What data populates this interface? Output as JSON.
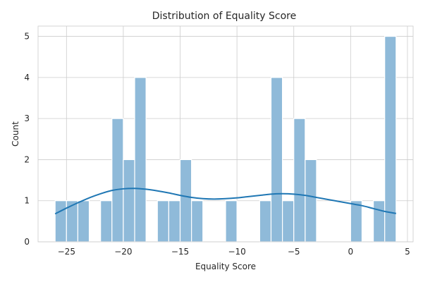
{
  "chart_data": {
    "type": "bar",
    "title": "Distribution of Equality Score",
    "xlabel": "Equality Score",
    "ylabel": "Count",
    "xlim": [
      -27.5,
      5.5
    ],
    "ylim": [
      0,
      5.25
    ],
    "x_ticks": [
      -25,
      -20,
      -15,
      -10,
      -5,
      0,
      5
    ],
    "x_tick_labels": [
      "−25",
      "−20",
      "−15",
      "−10",
      "−5",
      "0",
      "5"
    ],
    "y_ticks": [
      0,
      1,
      2,
      3,
      4,
      5
    ],
    "y_tick_labels": [
      "0",
      "1",
      "2",
      "3",
      "4",
      "5"
    ],
    "grid": true,
    "bar_color": "#8fbad9",
    "bar_edge_color": "#ffffff",
    "kde_color": "#1f77b4",
    "bins": [
      {
        "x0": -26.0,
        "x1": -25.0,
        "count": 1
      },
      {
        "x0": -25.0,
        "x1": -24.0,
        "count": 1
      },
      {
        "x0": -24.0,
        "x1": -23.0,
        "count": 1
      },
      {
        "x0": -22.0,
        "x1": -21.0,
        "count": 1
      },
      {
        "x0": -21.0,
        "x1": -20.0,
        "count": 3
      },
      {
        "x0": -20.0,
        "x1": -19.0,
        "count": 2
      },
      {
        "x0": -19.0,
        "x1": -18.0,
        "count": 4
      },
      {
        "x0": -17.0,
        "x1": -16.0,
        "count": 1
      },
      {
        "x0": -16.0,
        "x1": -15.0,
        "count": 1
      },
      {
        "x0": -15.0,
        "x1": -14.0,
        "count": 2
      },
      {
        "x0": -14.0,
        "x1": -13.0,
        "count": 1
      },
      {
        "x0": -11.0,
        "x1": -10.0,
        "count": 1
      },
      {
        "x0": -8.0,
        "x1": -7.0,
        "count": 1
      },
      {
        "x0": -7.0,
        "x1": -6.0,
        "count": 4
      },
      {
        "x0": -6.0,
        "x1": -5.0,
        "count": 1
      },
      {
        "x0": -5.0,
        "x1": -4.0,
        "count": 3
      },
      {
        "x0": -4.0,
        "x1": -3.0,
        "count": 2
      },
      {
        "x0": 0.0,
        "x1": 1.0,
        "count": 1
      },
      {
        "x0": 2.0,
        "x1": 3.0,
        "count": 1
      },
      {
        "x0": 3.0,
        "x1": 4.0,
        "count": 5
      }
    ],
    "kde": {
      "x": [
        -26,
        -25,
        -24,
        -23,
        -22,
        -21,
        -20,
        -19,
        -18,
        -17,
        -16,
        -15,
        -14,
        -13,
        -12,
        -11,
        -10,
        -9,
        -8,
        -7,
        -6,
        -5,
        -4,
        -3,
        -2,
        -1,
        0,
        1,
        2,
        3,
        4
      ],
      "y": [
        0.68,
        0.82,
        0.95,
        1.07,
        1.17,
        1.25,
        1.29,
        1.3,
        1.28,
        1.24,
        1.19,
        1.13,
        1.08,
        1.05,
        1.04,
        1.05,
        1.07,
        1.1,
        1.13,
        1.16,
        1.17,
        1.16,
        1.13,
        1.08,
        1.03,
        0.98,
        0.93,
        0.88,
        0.81,
        0.74,
        0.69
      ]
    }
  }
}
